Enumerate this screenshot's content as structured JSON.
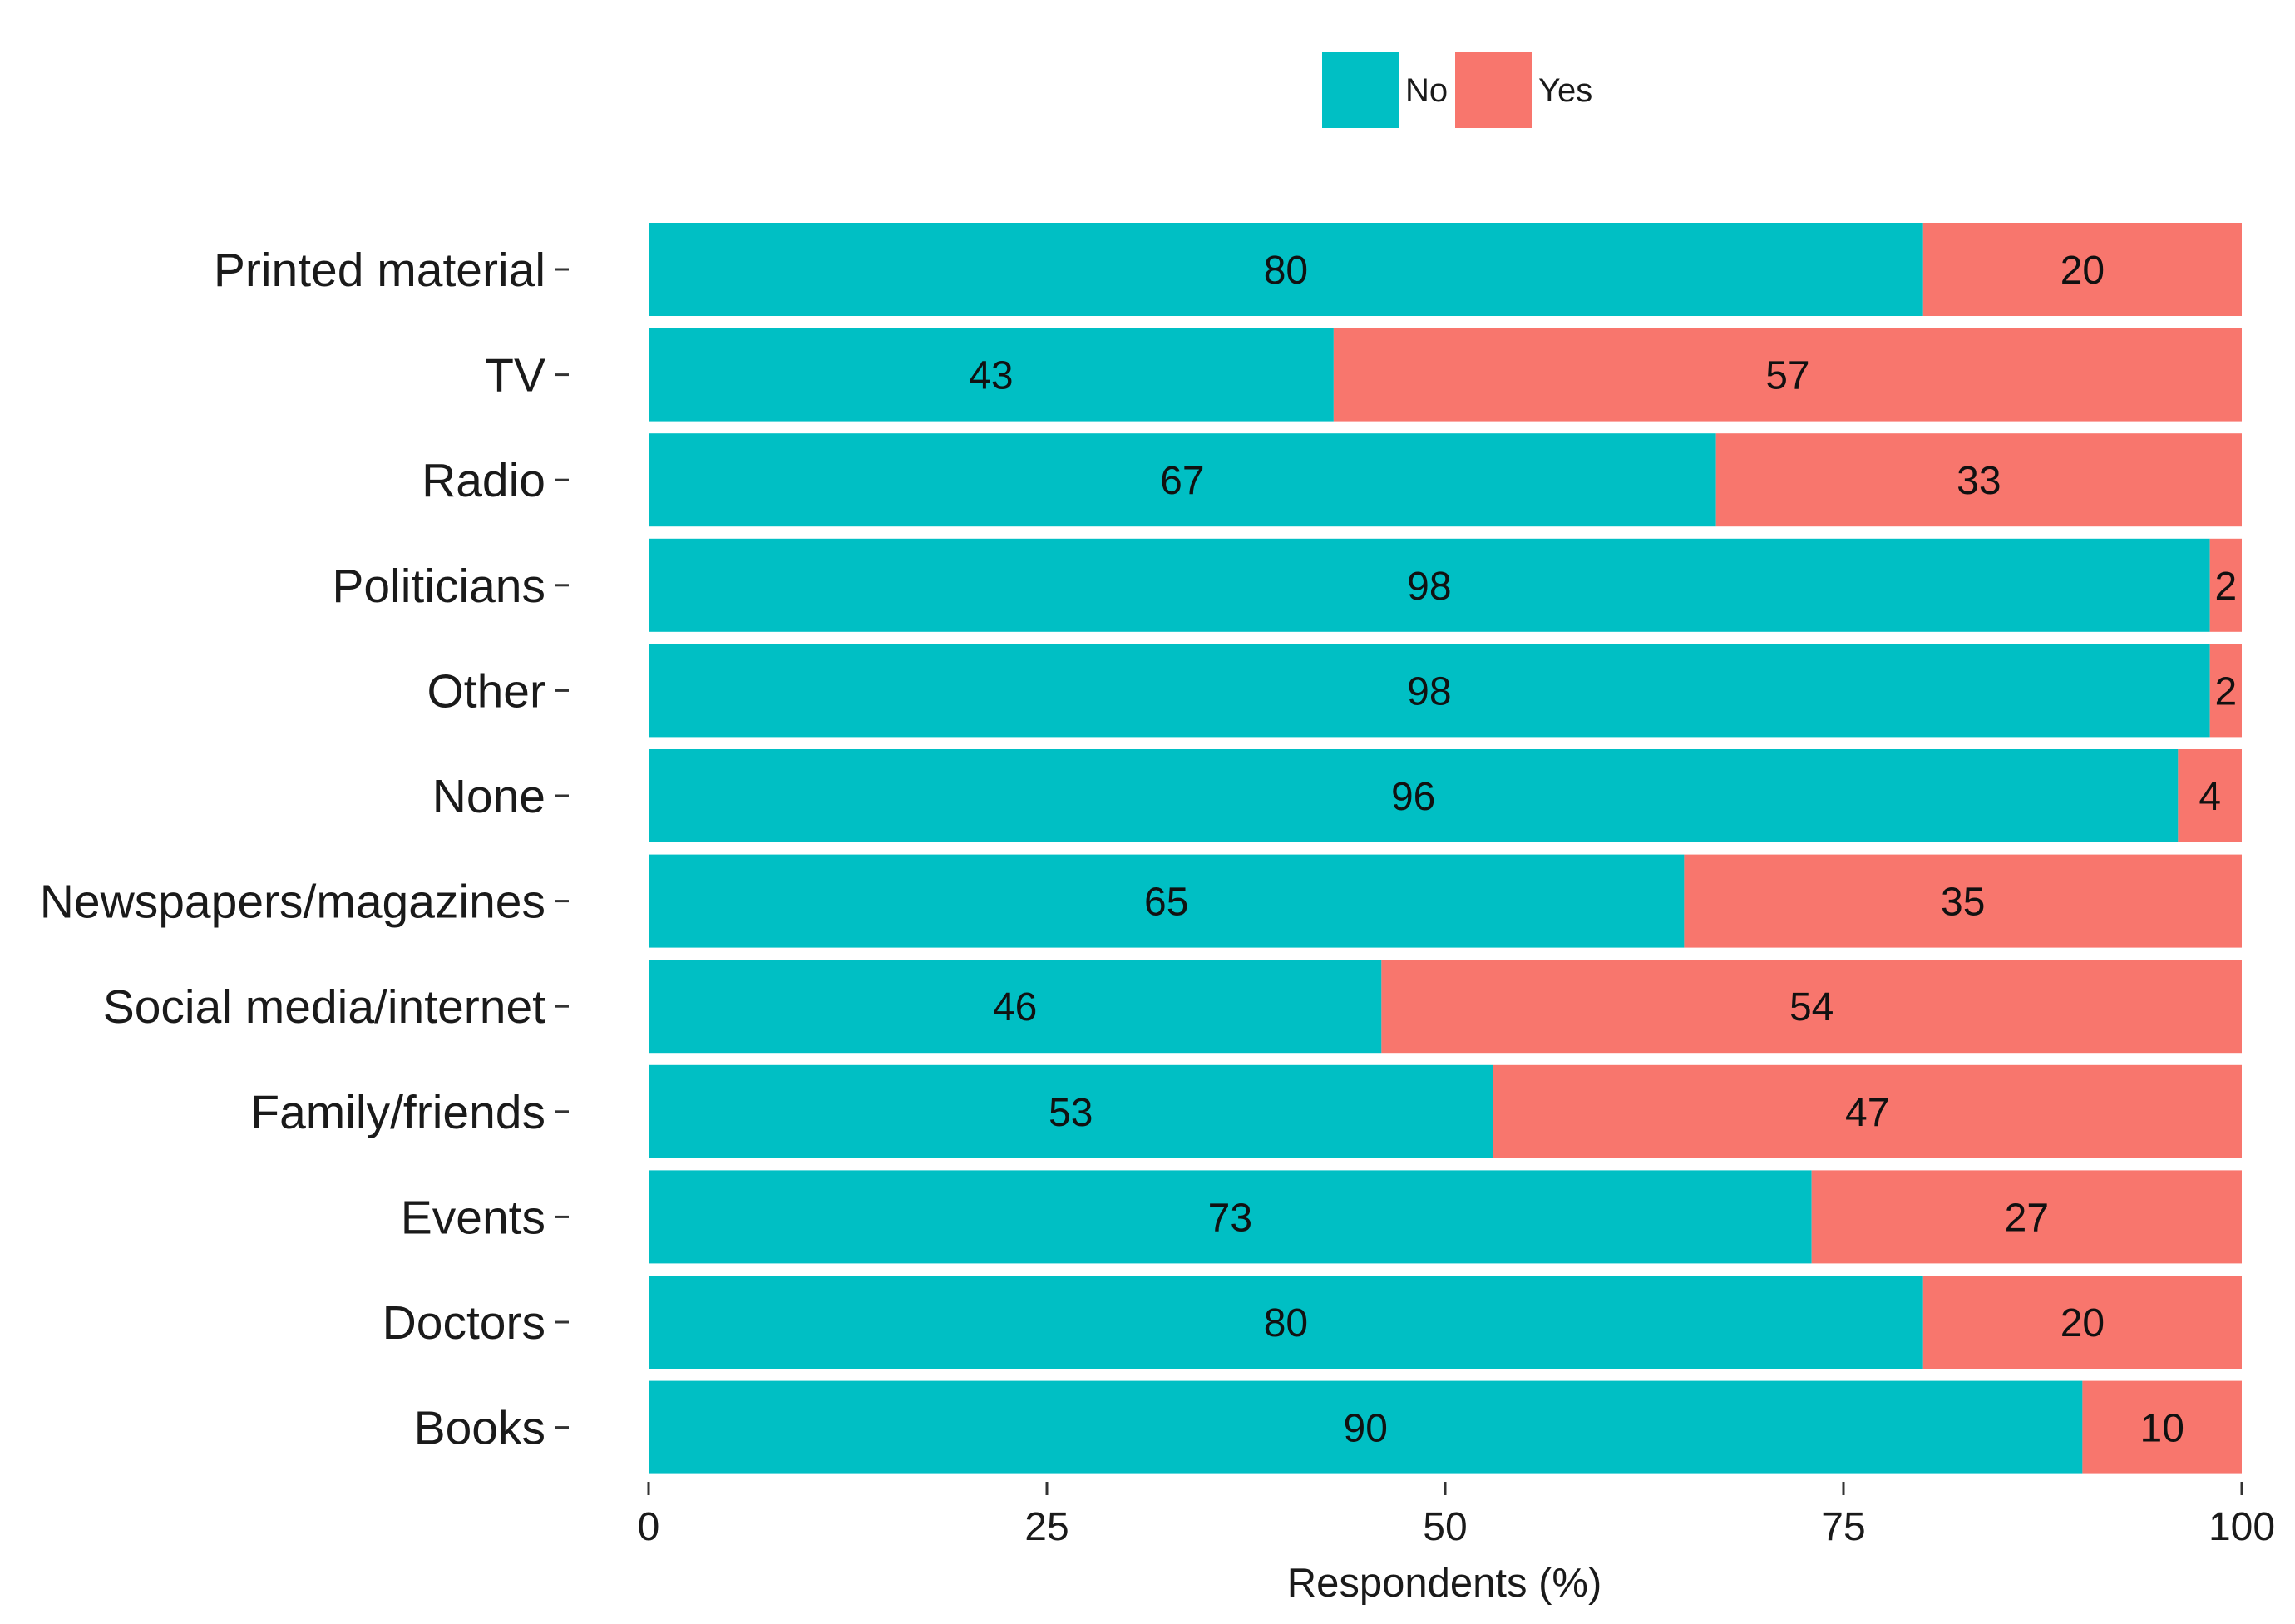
{
  "chart_data": {
    "type": "bar",
    "orientation": "horizontal",
    "stacked": true,
    "title": "",
    "xlabel": "Respondents (%)",
    "ylabel": "",
    "xlim": [
      0,
      100
    ],
    "x_ticks": [
      "0",
      "25",
      "50",
      "75",
      "100"
    ],
    "grid": false,
    "legend_position": "top",
    "categories": [
      "Printed material",
      "TV",
      "Radio",
      "Politicians",
      "Other",
      "None",
      "Newspapers/magazines",
      "Social media/internet",
      "Family/friends",
      "Events",
      "Doctors",
      "Books"
    ],
    "series": [
      {
        "name": "No",
        "color": "#00BFC4",
        "values": [
          80,
          43,
          67,
          98,
          98,
          96,
          65,
          46,
          53,
          73,
          80,
          90
        ]
      },
      {
        "name": "Yes",
        "color": "#F8766D",
        "values": [
          20,
          57,
          33,
          2,
          2,
          4,
          35,
          54,
          47,
          27,
          20,
          10
        ]
      }
    ]
  }
}
